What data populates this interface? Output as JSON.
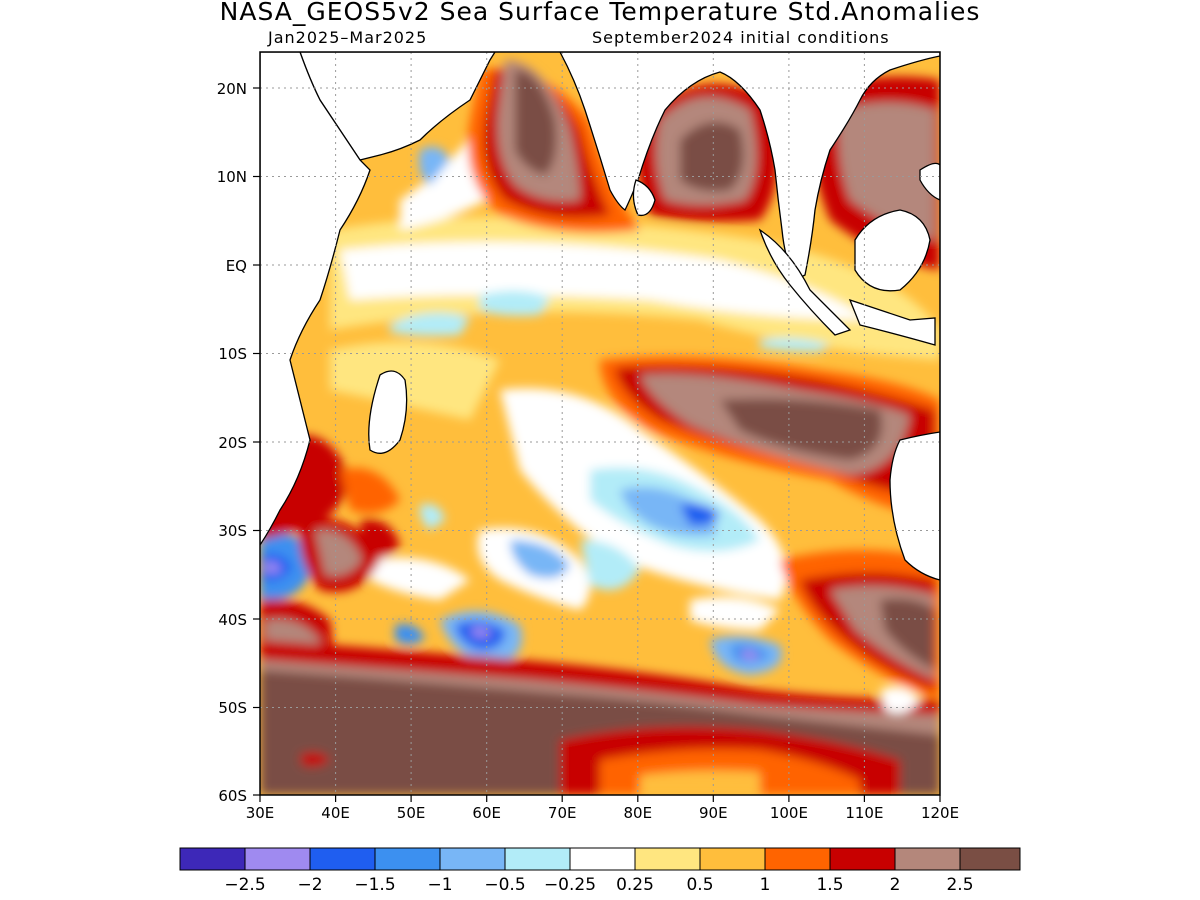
{
  "header": {
    "title": "NASA_GEOS5v2 Sea Surface Temperature Std.Anomalies",
    "period": "Jan2025–Mar2025",
    "init": "September2024 initial conditions"
  },
  "map": {
    "lat_labels": [
      "20N",
      "10N",
      "EQ",
      "10S",
      "20S",
      "30S",
      "40S",
      "50S",
      "60S"
    ],
    "lon_labels": [
      "30E",
      "40E",
      "50E",
      "60E",
      "70E",
      "80E",
      "90E",
      "100E",
      "110E",
      "120E"
    ],
    "extent": {
      "lon": [
        30,
        120
      ],
      "lat": [
        -60,
        24
      ]
    },
    "grid": "dotted"
  },
  "legend": {
    "colors": [
      "#3d28b8",
      "#9f8af0",
      "#1f5ef0",
      "#3c90f0",
      "#78b6f6",
      "#b2ecf8",
      "#ffffff",
      "#ffe680",
      "#ffbe3c",
      "#ff6400",
      "#c80000",
      "#b4877b",
      "#7a4e44"
    ],
    "labels": [
      "−2.5",
      "−2",
      "−1.5",
      "−1",
      "−0.5",
      "−0.25",
      "0.25",
      "0.5",
      "1",
      "1.5",
      "2",
      "2.5"
    ]
  }
}
